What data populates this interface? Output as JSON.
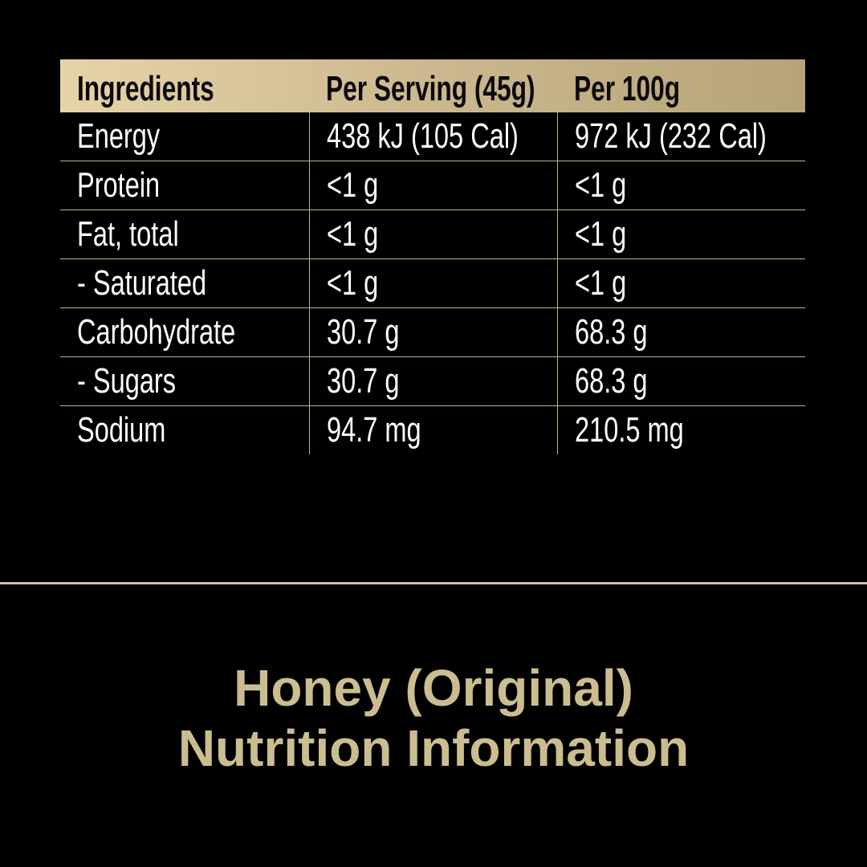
{
  "table": {
    "headers": [
      "Ingredients",
      "Per Serving (45g)",
      "Per 100g"
    ],
    "rows": [
      [
        "Energy",
        "438 kJ (105 Cal)",
        "972 kJ (232 Cal)"
      ],
      [
        "Protein",
        "<1 g",
        "<1 g"
      ],
      [
        "Fat, total",
        "<1 g",
        "<1 g"
      ],
      [
        "- Saturated",
        "<1 g",
        "<1 g"
      ],
      [
        "Carbohydrate",
        "30.7 g",
        "68.3 g"
      ],
      [
        "- Sugars",
        "30.7 g",
        "68.3 g"
      ],
      [
        "Sodium",
        "94.7 mg",
        "210.5 mg"
      ]
    ]
  },
  "title": {
    "line1": "Honey (Original)",
    "line2": "Nutrition Information"
  },
  "colors": {
    "background": "#000000",
    "gold": "#cbbd8f",
    "text": "#ffffff"
  }
}
